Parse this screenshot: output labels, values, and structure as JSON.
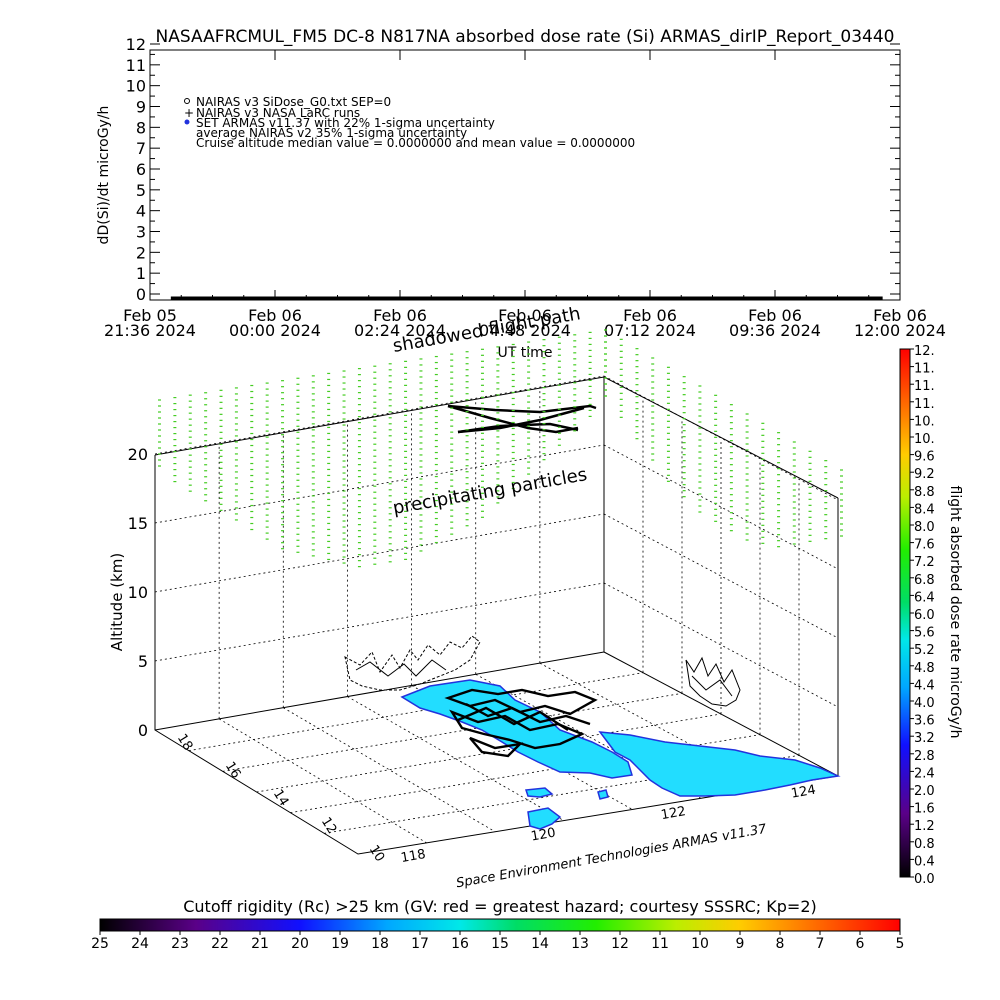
{
  "title": "NASAAFRCMUL_FM5 DC-8   N817NA absorbed dose rate (Si) ARMAS_dirIP_Report_03440",
  "chart_data": [
    {
      "type": "line",
      "ylabel": "dD(Si)/dt microGy/h",
      "xlabel": "UT time",
      "ylim": [
        0,
        12
      ],
      "yticks": [
        "0",
        "1",
        "2",
        "3",
        "4",
        "5",
        "6",
        "7",
        "8",
        "9",
        "10",
        "11",
        "12"
      ],
      "xticks": [
        {
          "date": "Feb 05",
          "time": "21:36 2024"
        },
        {
          "date": "Feb 06",
          "time": "00:00 2024"
        },
        {
          "date": "Feb 06",
          "time": "02:24 2024"
        },
        {
          "date": "Feb 06",
          "time": "04:48 2024"
        },
        {
          "date": "Feb 06",
          "time": "07:12 2024"
        },
        {
          "date": "Feb 06",
          "time": "09:36 2024"
        },
        {
          "date": "Feb 06",
          "time": "12:00 2024"
        }
      ],
      "legend": [
        "NAIRAS v3 SiDose_G0.txt SEP=0",
        "NAIRAS v3 NASA LaRC runs",
        "SET ARMAS v11.37 with 22% 1-sigma uncertainty",
        "average NAIRAS v2 35% 1-sigma uncertainty",
        "Cruise altitude median value = 0.0000000 and mean value = 0.0000000"
      ],
      "series": [
        {
          "name": "SET ARMAS v11.37 with 22% 1-sigma uncertainty",
          "x": [
            "2024-02-05 22:00",
            "2024-02-06 11:40"
          ],
          "values": [
            0,
            0
          ]
        }
      ]
    },
    {
      "type": "scatter",
      "zlabel": "Altitude (km)",
      "zticks": [
        "0",
        "5",
        "10",
        "15",
        "20"
      ],
      "lat_ticks": [
        "10",
        "12",
        "14",
        "16",
        "18"
      ],
      "lon_ticks": [
        "118",
        "120",
        "122",
        "124"
      ],
      "annotations": [
        "shadowed flight path",
        "precipitating particles"
      ],
      "credit": "Space Environment Technologies ARMAS v11.37"
    }
  ],
  "colorbar_right": {
    "label": "flight absorbed dose rate microGy/h",
    "ticks": [
      "0.0",
      "0.4",
      "0.8",
      "1.2",
      "1.6",
      "2.0",
      "2.4",
      "2.8",
      "3.2",
      "3.6",
      "4.0",
      "4.4",
      "4.8",
      "5.2",
      "5.6",
      "6.0",
      "6.4",
      "6.8",
      "7.2",
      "7.6",
      "8.0",
      "8.4",
      "8.8",
      "9.2",
      "9.6",
      "10.",
      "10.",
      "11.",
      "11.",
      "11.",
      "12."
    ]
  },
  "colorbar_bottom": {
    "label": "Cutoff rigidity (Rc) >25 km (GV: red = greatest hazard; courtesy SSSRC; Kp=2)",
    "ticks": [
      "25",
      "24",
      "23",
      "22",
      "21",
      "20",
      "19",
      "18",
      "17",
      "16",
      "15",
      "14",
      "13",
      "12",
      "11",
      "10",
      "9",
      "8",
      "7",
      "6",
      "5"
    ]
  },
  "colors": {
    "flight_path": "#000000",
    "precipitating": "#44cc22",
    "land": "#22ddff",
    "coast": "#2233dd"
  }
}
